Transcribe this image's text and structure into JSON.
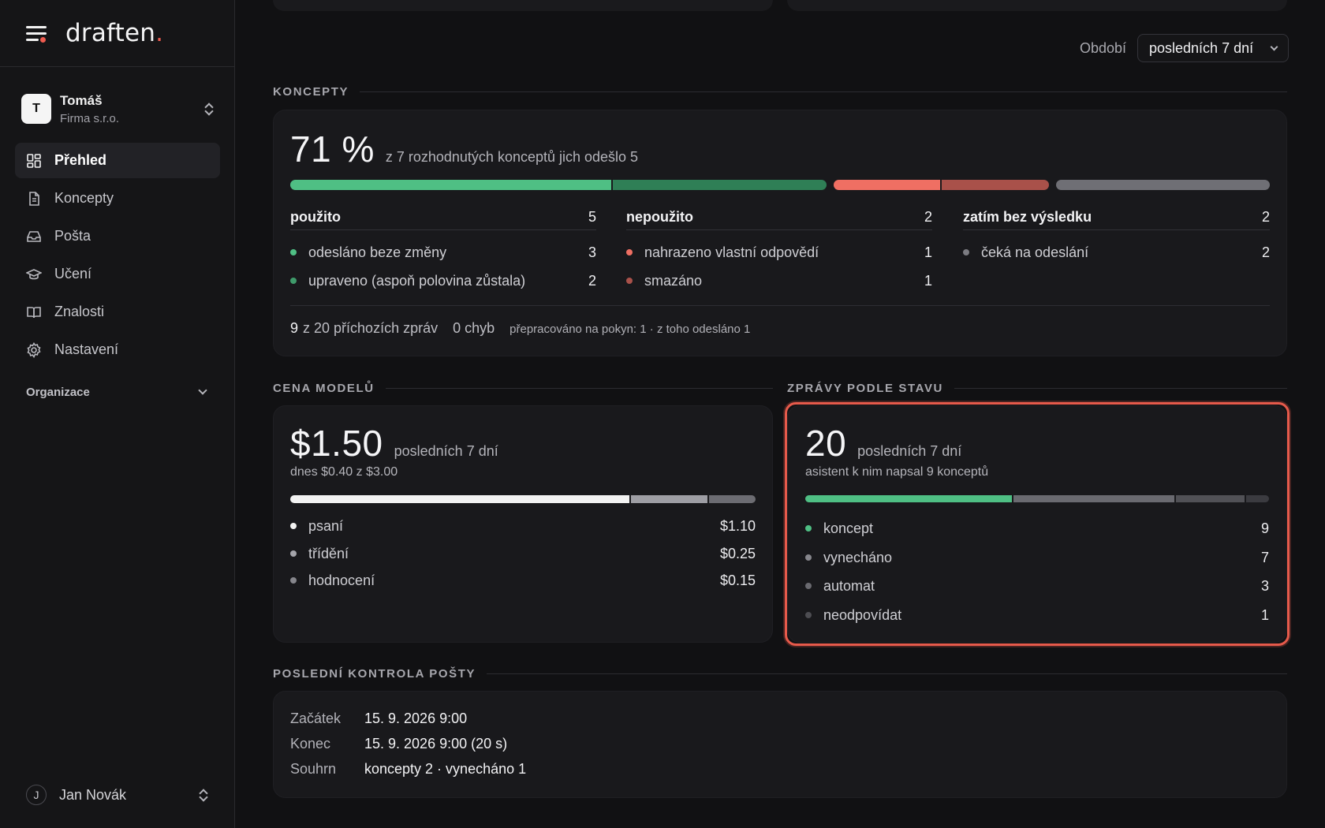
{
  "app": {
    "logo": "draften",
    "logo_dot": "."
  },
  "account": {
    "initial": "T",
    "name": "Tomáš",
    "org": "Firma s.r.o."
  },
  "nav": {
    "items": [
      {
        "label": "Přehled",
        "icon": "dashboard-icon",
        "active": true
      },
      {
        "label": "Koncepty",
        "icon": "document-icon",
        "active": false
      },
      {
        "label": "Pošta",
        "icon": "inbox-icon",
        "active": false
      },
      {
        "label": "Učení",
        "icon": "graduation-cap-icon",
        "active": false
      },
      {
        "label": "Znalosti",
        "icon": "book-icon",
        "active": false
      },
      {
        "label": "Nastavení",
        "icon": "gear-icon",
        "active": false
      }
    ],
    "organization_label": "Organizace"
  },
  "user": {
    "initial": "J",
    "name": "Jan Novák"
  },
  "period": {
    "label": "Období",
    "selected": "posledních 7 dní"
  },
  "drafts": {
    "section_title": "KONCEPTY",
    "percent": "71 %",
    "summary": "z 7 rozhodnutých konceptů jich odešlo 5",
    "bar": [
      {
        "value": 3,
        "color": "#4fbf84"
      },
      {
        "value": 2,
        "color": "#2f7f56"
      },
      {
        "value": 1,
        "color": "#ef6f63"
      },
      {
        "value": 1,
        "color": "#a9514a"
      },
      {
        "value": 2,
        "color": "#6f6f75"
      }
    ],
    "groups": [
      {
        "title": "použito",
        "count": "5",
        "items": [
          {
            "label": "odesláno beze změny",
            "value": "3",
            "color": "#4fbf84"
          },
          {
            "label": "upraveno (aspoň polovina zůstala)",
            "value": "2",
            "color": "#3f9b6b"
          }
        ]
      },
      {
        "title": "nepoužito",
        "count": "2",
        "items": [
          {
            "label": "nahrazeno vlastní odpovědí",
            "value": "1",
            "color": "#ef6f63"
          },
          {
            "label": "smazáno",
            "value": "1",
            "color": "#a9514a"
          }
        ]
      },
      {
        "title": "zatím bez výsledku",
        "count": "2",
        "items": [
          {
            "label": "čeká na odeslání",
            "value": "2",
            "color": "#7c7c82"
          }
        ]
      }
    ],
    "footer": {
      "processed_num": "9",
      "processed_text": "z 20 příchozích zpráv",
      "errors": "0 chyb",
      "reworked": "přepracováno na pokyn: 1 · z toho odesláno 1"
    }
  },
  "cost": {
    "section_title": "CENA MODELŮ",
    "amount": "$1.50",
    "period": "posledních 7 dní",
    "today": "dnes $0.40 z $3.00",
    "bar": [
      {
        "value": 1.1,
        "color": "#f2f2f2"
      },
      {
        "value": 0.25,
        "color": "#9e9ea4"
      },
      {
        "value": 0.15,
        "color": "#6c6c72"
      }
    ],
    "items": [
      {
        "label": "psaní",
        "value": "$1.10",
        "color": "#f2f2f2"
      },
      {
        "label": "třídění",
        "value": "$0.25",
        "color": "#a5a5ab"
      },
      {
        "label": "hodnocení",
        "value": "$0.15",
        "color": "#86868c"
      }
    ]
  },
  "messages": {
    "section_title": "ZPRÁVY PODLE STAVU",
    "count": "20",
    "period": "posledních 7 dní",
    "note": "asistent k nim napsal 9 konceptů",
    "bar": [
      {
        "value": 9,
        "color": "#4fbf84"
      },
      {
        "value": 7,
        "color": "#6a6a70"
      },
      {
        "value": 3,
        "color": "#515156"
      },
      {
        "value": 1,
        "color": "#3b3b40"
      }
    ],
    "items": [
      {
        "label": "koncept",
        "value": "9",
        "color": "#4fbf84"
      },
      {
        "label": "vynecháno",
        "value": "7",
        "color": "#86868c"
      },
      {
        "label": "automat",
        "value": "3",
        "color": "#6a6a70"
      },
      {
        "label": "neodpovídat",
        "value": "1",
        "color": "#4d4d52"
      }
    ]
  },
  "last_check": {
    "section_title": "POSLEDNÍ KONTROLA POŠTY",
    "rows": [
      {
        "key": "Začátek",
        "value": "15. 9. 2026 9:00"
      },
      {
        "key": "Konec",
        "value": "15. 9. 2026 9:00 (20 s)"
      },
      {
        "key": "Souhrn",
        "value": "koncepty 2 · vynecháno 1"
      }
    ]
  }
}
